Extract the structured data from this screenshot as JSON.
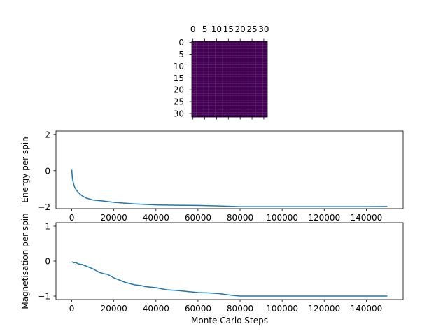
{
  "figure": {
    "background": "#ffffff",
    "text_color": "#000000"
  },
  "chart_data": [
    {
      "type": "heatmap",
      "title": "",
      "rows": 32,
      "cols": 32,
      "uniform_value": "all cells equal (lowest colormap value)",
      "colormap": "viridis",
      "cell_color": "#440154",
      "x_ticks": [
        0,
        5,
        10,
        15,
        20,
        25,
        30
      ],
      "x_tick_labels": [
        "0",
        "5",
        "10",
        "15",
        "20",
        "25",
        "30"
      ],
      "y_ticks": [
        0,
        5,
        10,
        15,
        20,
        25,
        30
      ],
      "y_tick_labels": [
        "0",
        "5",
        "10",
        "15",
        "20",
        "25",
        "30"
      ],
      "x_axis_position": "top",
      "xlim": [
        -0.5,
        31.5
      ],
      "ylim": [
        31.5,
        -0.5
      ]
    },
    {
      "type": "line",
      "xlabel": "",
      "ylabel": "Energy per spin",
      "xlim": [
        -7500,
        157500
      ],
      "ylim": [
        -2.1,
        2.2
      ],
      "x_ticks": [
        0,
        20000,
        40000,
        60000,
        80000,
        100000,
        120000,
        140000
      ],
      "y_ticks": [
        -2,
        0,
        2
      ],
      "grid": false,
      "series": [
        {
          "color": "#1f77b4",
          "x": [
            0,
            300,
            800,
            1500,
            2500,
            3500,
            5000,
            7000,
            10000,
            15000,
            20000,
            30000,
            40000,
            50000,
            60000,
            70000,
            80000,
            90000,
            100000,
            110000,
            120000,
            130000,
            140000,
            150000
          ],
          "y": [
            0.05,
            -0.4,
            -0.7,
            -0.95,
            -1.12,
            -1.25,
            -1.4,
            -1.52,
            -1.62,
            -1.68,
            -1.75,
            -1.84,
            -1.89,
            -1.91,
            -1.92,
            -1.95,
            -1.99,
            -1.99,
            -1.99,
            -1.99,
            -1.99,
            -1.99,
            -1.99,
            -1.98
          ]
        }
      ]
    },
    {
      "type": "line",
      "xlabel": "Monte Carlo Steps",
      "ylabel": "Magnetisation per spin",
      "xlim": [
        -7500,
        157500
      ],
      "ylim": [
        -1.1,
        1.1
      ],
      "x_ticks": [
        0,
        20000,
        40000,
        60000,
        80000,
        100000,
        120000,
        140000
      ],
      "y_ticks": [
        -1,
        0,
        1
      ],
      "grid": false,
      "series": [
        {
          "color": "#1f77b4",
          "x": [
            0,
            1000,
            2000,
            3000,
            5000,
            7000,
            10000,
            13000,
            15000,
            17000,
            20000,
            23000,
            25000,
            28000,
            30000,
            33000,
            35000,
            40000,
            45000,
            50000,
            55000,
            60000,
            65000,
            70000,
            75000,
            78000,
            80000,
            90000,
            100000,
            110000,
            120000,
            130000,
            140000,
            150000
          ],
          "y": [
            -0.02,
            -0.05,
            -0.04,
            -0.08,
            -0.1,
            -0.15,
            -0.22,
            -0.32,
            -0.36,
            -0.38,
            -0.48,
            -0.55,
            -0.6,
            -0.65,
            -0.68,
            -0.7,
            -0.73,
            -0.76,
            -0.82,
            -0.84,
            -0.87,
            -0.9,
            -0.91,
            -0.93,
            -0.97,
            -0.99,
            -1.0,
            -1.0,
            -1.0,
            -1.0,
            -1.0,
            -1.0,
            -1.0,
            -1.0
          ]
        }
      ]
    }
  ]
}
